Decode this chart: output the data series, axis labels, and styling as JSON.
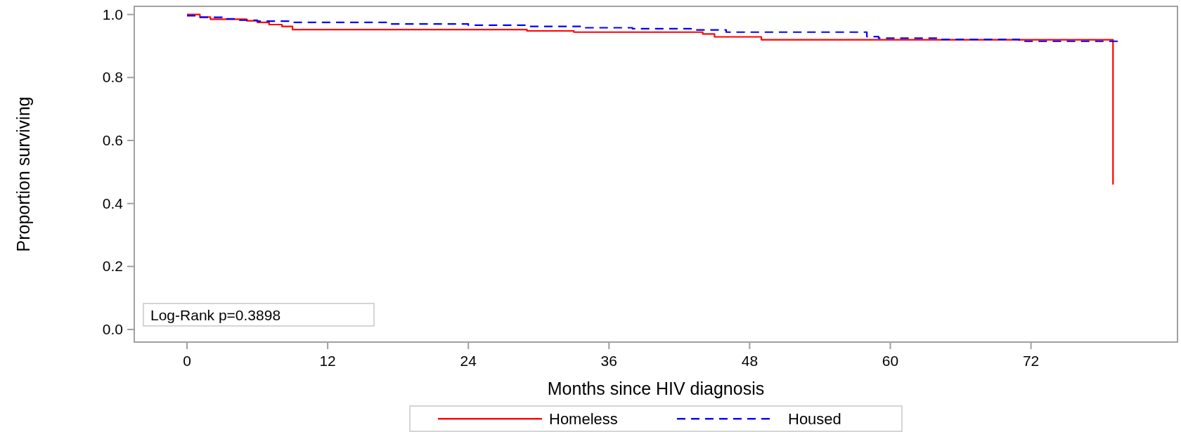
{
  "chart_data": {
    "type": "step",
    "xlabel": "Months since HIV diagnosis",
    "ylabel": "Proportion surviving",
    "xlim": [
      -4.5,
      84.5
    ],
    "xticks": [
      0,
      12,
      24,
      36,
      48,
      60,
      72
    ],
    "ylim": [
      -0.04,
      1.026
    ],
    "yticks": [
      {
        "value": 0,
        "label": "0.0"
      },
      0.2,
      0.4,
      0.6,
      0.8,
      {
        "value": 1,
        "label": "1.0"
      }
    ],
    "grid": false,
    "legend": "bottom",
    "annotations": [
      "Log-Rank p=0.3898"
    ],
    "series": [
      {
        "name": "Homeless",
        "color": "#ff0000",
        "line_style": "solid",
        "x": [
          0,
          1.1,
          2,
          5.1,
          6,
          7,
          8.1,
          9,
          29,
          33,
          44,
          45,
          49,
          79,
          79
        ],
        "values": [
          1.0,
          0.992,
          0.985,
          0.98,
          0.975,
          0.968,
          0.962,
          0.952,
          0.948,
          0.944,
          0.938,
          0.929,
          0.92,
          0.92,
          0.46
        ]
      },
      {
        "name": "Housed",
        "color": "#0000ff",
        "line_style": "dashed",
        "x": [
          0,
          1,
          3,
          4.5,
          6,
          9,
          17,
          24,
          29,
          34,
          38,
          43,
          46,
          58,
          59,
          64,
          71,
          79.4
        ],
        "values": [
          0.996,
          0.991,
          0.986,
          0.982,
          0.979,
          0.975,
          0.97,
          0.966,
          0.962,
          0.958,
          0.955,
          0.951,
          0.944,
          0.93,
          0.925,
          0.921,
          0.915,
          0.915
        ]
      }
    ]
  }
}
